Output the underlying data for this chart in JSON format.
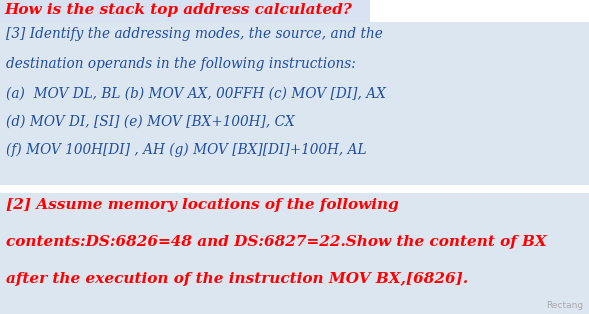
{
  "bg_color": "#ffffff",
  "title_text": "How is the stack top address calculated?",
  "title_color": "#ff0000",
  "title_fontsize": 11.0,
  "title_bg": "#d9e2f3",
  "box1_bg": "#dce6f1",
  "box2_bg": "#dce6f1",
  "box1_lines": [
    {
      "text": "[3] Identify the addressing modes, the source, and the",
      "color": "#1f4e9e",
      "fontsize": 9.8
    },
    {
      "text": "destination operands in the following instructions:",
      "color": "#1f4e9e",
      "fontsize": 9.8
    },
    {
      "text": "(a)  MOV DL, BL (b) MOV AX, 00FFH (c) MOV [DI], AX",
      "color": "#1f4e9e",
      "fontsize": 9.8
    },
    {
      "text": "(d) MOV DI, [SI] (e) MOV [BX+100H], CX",
      "color": "#1f4e9e",
      "fontsize": 9.8
    },
    {
      "text": "(f) MOV 100H[DI] , AH (g) MOV [BX][DI]+100H, AL",
      "color": "#1f4e9e",
      "fontsize": 9.8
    }
  ],
  "box2_lines": [
    {
      "text": "[2] Assume memory locations of the following",
      "color": "#ff0000",
      "fontsize": 11.0
    },
    {
      "text": "contents:DS:6826=48 and DS:6827=22.Show the content of BX",
      "color": "#ff0000",
      "fontsize": 11.0
    },
    {
      "text": "after the execution of the instruction MOV BX,[6826].",
      "color": "#ff0000",
      "fontsize": 11.0
    }
  ],
  "watermark": "Rectang",
  "figsize": [
    5.89,
    3.14
  ],
  "dpi": 100
}
